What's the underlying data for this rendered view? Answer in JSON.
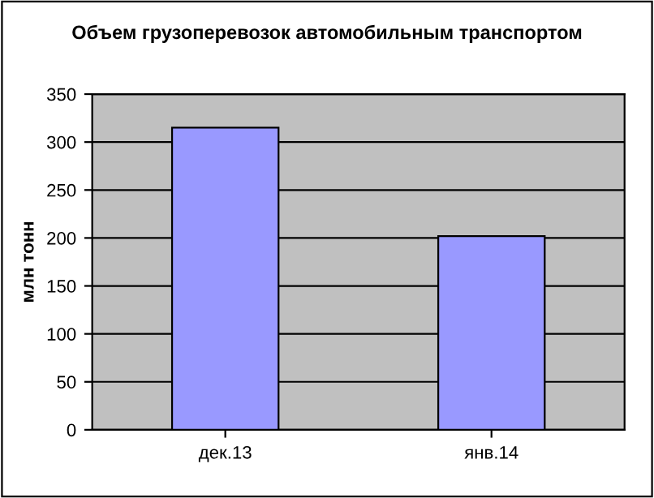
{
  "chart_data": {
    "type": "bar",
    "title": "Объем грузоперевозок автомобильным транспортом",
    "ylabel": "млн тонн",
    "categories": [
      "дек.13",
      "янв.14"
    ],
    "values": [
      315,
      202
    ],
    "color": "#9999ff",
    "ylim": [
      0,
      350
    ],
    "yticks": [
      0,
      50,
      100,
      150,
      200,
      250,
      300,
      350
    ],
    "grid": "y",
    "legend": false
  }
}
